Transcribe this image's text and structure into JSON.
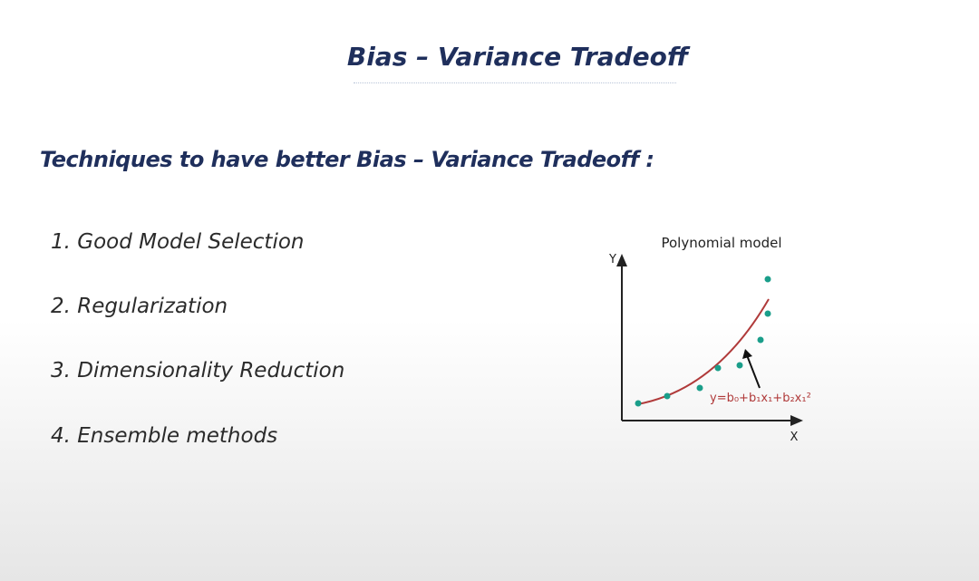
{
  "slide": {
    "title": "Bias – Variance Tradeoff",
    "subtitle": "Techniques to have better Bias – Variance Tradeoff :",
    "items": [
      "1. Good Model Selection",
      "2. Regularization",
      "3. Dimensionality Reduction",
      "4. Ensemble methods"
    ],
    "figure": {
      "title": "Polynomial model",
      "y_label": "Y",
      "x_label": "X",
      "equation": "y=b₀+b₁x₁+b₂x₁²"
    }
  }
}
